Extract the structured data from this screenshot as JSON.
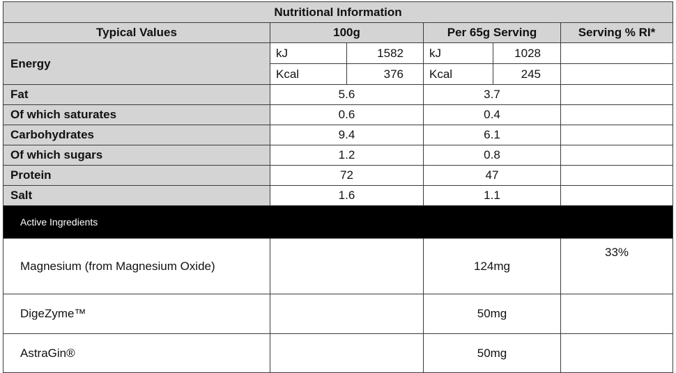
{
  "table": {
    "title": "Nutritional Information",
    "headers": {
      "typical": "Typical Values",
      "per100": "100g",
      "perServing": "Per 65g Serving",
      "ri": "Serving % RI*"
    },
    "energy": {
      "label": "Energy",
      "kj_unit": "kJ",
      "kj_100": "1582",
      "kj_serv_unit": "kJ",
      "kj_serv": "1028",
      "kcal_unit": "Kcal",
      "kcal_100": "376",
      "kcal_serv_unit": "Kcal",
      "kcal_serv": "245"
    },
    "rows": [
      {
        "label": "Fat",
        "per100": "5.6",
        "perServing": "3.7"
      },
      {
        "label": "Of which saturates",
        "per100": "0.6",
        "perServing": "0.4"
      },
      {
        "label": "Carbohydrates",
        "per100": "9.4",
        "perServing": "6.1"
      },
      {
        "label": "Of which sugars",
        "per100": "1.2",
        "perServing": "0.8"
      },
      {
        "label": "Protein",
        "per100": "72",
        "perServing": "47"
      },
      {
        "label": "Salt",
        "per100": "1.6",
        "perServing": "1.1"
      }
    ],
    "active_header": "Active Ingredients",
    "ingredients": [
      {
        "name": "Magnesium (from Magnesium Oxide)",
        "perServing": "124mg",
        "ri": "33%"
      },
      {
        "name": "DigeZyme™",
        "perServing": "50mg",
        "ri": ""
      },
      {
        "name": "AstraGin®",
        "perServing": "50mg",
        "ri": ""
      }
    ]
  }
}
